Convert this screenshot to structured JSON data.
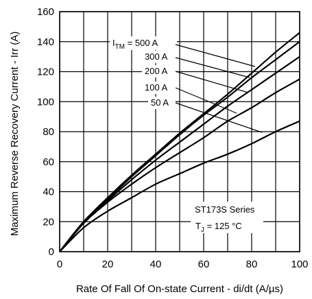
{
  "chart_data": {
    "type": "line",
    "title": "",
    "xlabel": "Rate Of Fall Of On-state Current - di/dt (A/µs)",
    "ylabel": "Maximum Reverse Recovery Current - Irr (A)",
    "xlim": [
      0,
      100
    ],
    "ylim": [
      0,
      160
    ],
    "xticks": [
      0,
      20,
      40,
      60,
      80,
      100
    ],
    "yticks": [
      0,
      20,
      40,
      60,
      80,
      100,
      120,
      140,
      160
    ],
    "grid": true,
    "x": [
      0,
      10,
      20,
      30,
      40,
      50,
      60,
      70,
      80,
      90,
      100
    ],
    "series": [
      {
        "name": "ITM = 500 A",
        "values": [
          0,
          20,
          36,
          51,
          65,
          79,
          92,
          105,
          119,
          133,
          146
        ]
      },
      {
        "name": "300 A",
        "values": [
          0,
          20,
          35,
          50,
          64,
          78,
          91,
          103,
          116,
          128,
          140
        ]
      },
      {
        "name": "200 A",
        "values": [
          0,
          19,
          34,
          48,
          61,
          73,
          85,
          97,
          108,
          119,
          130
        ]
      },
      {
        "name": "100 A",
        "values": [
          0,
          19,
          33,
          45,
          56,
          66,
          76,
          87,
          96,
          106,
          115
        ]
      },
      {
        "name": "50 A",
        "values": [
          0,
          16,
          27,
          36,
          45,
          52,
          59,
          65,
          72,
          80,
          87
        ]
      }
    ],
    "curve_label_prefix": "I",
    "curve_label_sub": "TM",
    "curve_label_first": " = 500 A",
    "curve_labels": [
      "300 A",
      "200 A",
      "100 A",
      "50 A"
    ],
    "series_title": "ST173S Series",
    "tj_prefix": "T",
    "tj_sub": "J",
    "tj_value": " = 125 °C"
  }
}
